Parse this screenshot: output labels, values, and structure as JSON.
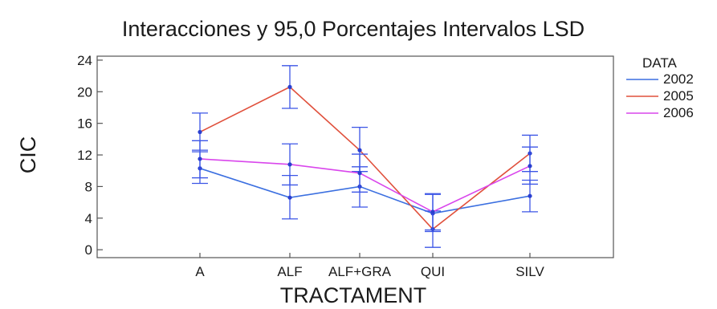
{
  "chart_data": {
    "type": "line",
    "title": "Interacciones y 95,0 Porcentajes Intervalos LSD",
    "xlabel": "TRACTAMENT",
    "ylabel": "CIC",
    "categories": [
      "A",
      "ALF",
      "ALF+GRA",
      "QUI",
      "SILV"
    ],
    "ylim": [
      -1,
      24.5
    ],
    "yticks": [
      0,
      4,
      8,
      12,
      16,
      20,
      24
    ],
    "legend_title": "DATA",
    "legend_position": "top-right, outside plot",
    "grid": false,
    "error_bar_color": "#3b55e6",
    "series": [
      {
        "name": "2002",
        "color": "#3b6fe0",
        "values": [
          10.3,
          6.6,
          8.0,
          4.6,
          6.8
        ],
        "lower": [
          8.4,
          3.9,
          5.4,
          2.3,
          4.8
        ],
        "upper": [
          12.4,
          9.4,
          10.5,
          7.0,
          8.8
        ]
      },
      {
        "name": "2005",
        "color": "#e0503c",
        "values": [
          14.9,
          20.6,
          12.6,
          2.6,
          12.2
        ],
        "lower": [
          12.6,
          17.9,
          9.9,
          0.3,
          9.9
        ],
        "upper": [
          17.3,
          23.3,
          15.5,
          4.9,
          14.5
        ]
      },
      {
        "name": "2006",
        "color": "#d946ec",
        "values": [
          11.5,
          10.8,
          9.7,
          4.8,
          10.6
        ],
        "lower": [
          9.1,
          8.2,
          7.3,
          2.5,
          8.3
        ],
        "upper": [
          13.8,
          13.4,
          12.1,
          7.1,
          13.0
        ]
      }
    ]
  }
}
